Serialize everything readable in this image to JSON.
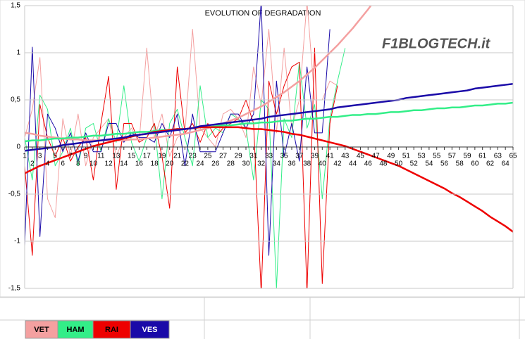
{
  "chart_data": {
    "type": "line",
    "title": "EVOLUTION OF DEGRADATION",
    "logo": "F1BLOGTECH.it",
    "categories": [
      1,
      2,
      3,
      4,
      5,
      6,
      7,
      8,
      9,
      10,
      11,
      12,
      13,
      14,
      15,
      16,
      17,
      18,
      19,
      20,
      21,
      22,
      23,
      24,
      25,
      26,
      27,
      28,
      29,
      30,
      31,
      32,
      33,
      34,
      35,
      36,
      37,
      38,
      39,
      40,
      41,
      42,
      43,
      44,
      45,
      46,
      47,
      48,
      49,
      50,
      51,
      52,
      53,
      54,
      55,
      56,
      57,
      58,
      59,
      60,
      61,
      62,
      63,
      64,
      65
    ],
    "ylim": [
      -1.5,
      1.5
    ],
    "yticks": [
      {
        "value": 1.5,
        "label": "1,5"
      },
      1,
      {
        "value": 0.5,
        "label": "0,5"
      },
      0,
      {
        "value": -0.5,
        "label": "-0,5"
      },
      -1,
      {
        "value": -1.5,
        "label": "-1,5"
      }
    ],
    "grid": true,
    "series": [
      {
        "name": "VET",
        "color": "#f4a0a0",
        "values": [
          0.1,
          0.4,
          0.95,
          -0.55,
          -0.75,
          0.3,
          -0.1,
          0.35,
          -0.2,
          0.1,
          0.2,
          0.3,
          -0.1,
          0.1,
          0.2,
          0.05,
          1.05,
          0.1,
          0.35,
          -0.1,
          0.1,
          0.15,
          1.25,
          0.2,
          0.1,
          0.0,
          0.35,
          0.4,
          0.3,
          0.1,
          0.85,
          0.45,
          1.25,
          0.15,
          1.05,
          0.2,
          0.5,
          1.55,
          0.5,
          0.5,
          0.7,
          0.65,
          null,
          null,
          null,
          null,
          null,
          null,
          null,
          null,
          null,
          null,
          null,
          null,
          null,
          null,
          null,
          null,
          null,
          null,
          null,
          null,
          null,
          null,
          null
        ],
        "trend": [
          0.15,
          0.14,
          0.12,
          0.11,
          0.1,
          0.09,
          0.08,
          0.08,
          0.07,
          0.07,
          0.07,
          0.07,
          0.07,
          0.07,
          0.08,
          0.08,
          0.09,
          0.1,
          0.11,
          0.12,
          0.13,
          0.14,
          0.16,
          0.18,
          0.2,
          0.22,
          0.25,
          0.28,
          0.31,
          0.35,
          0.39,
          0.43,
          0.48,
          0.53,
          0.58,
          0.64,
          0.7,
          0.77,
          0.84,
          0.92,
          1.0,
          1.08,
          1.17,
          1.26,
          1.36,
          1.46,
          1.57,
          1.68,
          null,
          null,
          null,
          null,
          null,
          null,
          null,
          null,
          null,
          null,
          null,
          null,
          null,
          null,
          null,
          null,
          null
        ]
      },
      {
        "name": "HAM",
        "color": "#33ee88",
        "values": [
          0.1,
          -0.35,
          0.55,
          0.4,
          -0.2,
          -0.05,
          0.2,
          -0.2,
          0.2,
          0.25,
          -0.05,
          0.3,
          0.05,
          0.65,
          0.05,
          -0.15,
          0.1,
          0.25,
          -0.55,
          0.25,
          0.4,
          0.1,
          -0.2,
          0.65,
          0.1,
          0.2,
          0.15,
          0.35,
          0.3,
          0.2,
          -0.35,
          0.5,
          0.4,
          -1.5,
          0.3,
          0.1,
          0.9,
          0.2,
          0.45,
          -0.55,
          0.3,
          0.7,
          1.05,
          null,
          null,
          null,
          null,
          null,
          null,
          null,
          null,
          null,
          null,
          null,
          null,
          null,
          null,
          null,
          null,
          null,
          null,
          null,
          null,
          null,
          null
        ],
        "trend": [
          0.06,
          0.07,
          0.07,
          0.08,
          0.09,
          0.09,
          0.1,
          0.1,
          0.11,
          0.12,
          0.12,
          0.13,
          0.14,
          0.14,
          0.15,
          0.16,
          0.16,
          0.17,
          0.18,
          0.18,
          0.19,
          0.19,
          0.2,
          0.21,
          0.21,
          0.22,
          0.23,
          0.23,
          0.24,
          0.25,
          0.25,
          0.26,
          0.26,
          0.27,
          0.28,
          0.28,
          0.29,
          0.3,
          0.3,
          0.31,
          0.32,
          0.32,
          0.33,
          0.34,
          0.34,
          0.35,
          0.35,
          0.36,
          0.37,
          0.37,
          0.38,
          0.39,
          0.39,
          0.4,
          0.41,
          0.41,
          0.42,
          0.42,
          0.43,
          0.44,
          0.44,
          0.45,
          0.46,
          0.46,
          0.47
        ]
      },
      {
        "name": "RAI",
        "color": "#ee0000",
        "values": [
          -0.2,
          -1.15,
          0.45,
          0.1,
          -0.1,
          0.1,
          -0.15,
          0.0,
          0.1,
          -0.35,
          0.25,
          0.75,
          -0.45,
          0.25,
          0.25,
          0.05,
          0.1,
          0.25,
          -0.1,
          -0.65,
          0.85,
          0.15,
          0.25,
          0.05,
          0.25,
          0.1,
          0.2,
          0.25,
          0.3,
          0.5,
          0.25,
          -1.55,
          0.7,
          0.35,
          0.65,
          0.85,
          0.9,
          -1.55,
          1.05,
          -1.45,
          0.25,
          0.65,
          null,
          null,
          null,
          null,
          null,
          null,
          null,
          null,
          null,
          null,
          null,
          null,
          null,
          null,
          null,
          null,
          null,
          null,
          null,
          null,
          null,
          null,
          null
        ],
        "trend": [
          -0.28,
          -0.24,
          -0.2,
          -0.17,
          -0.14,
          -0.11,
          -0.08,
          -0.05,
          -0.02,
          0.01,
          0.03,
          0.05,
          0.07,
          0.09,
          0.11,
          0.13,
          0.14,
          0.16,
          0.17,
          0.18,
          0.19,
          0.19,
          0.2,
          0.21,
          0.21,
          0.21,
          0.21,
          0.21,
          0.21,
          0.2,
          0.19,
          0.19,
          0.18,
          0.17,
          0.16,
          0.14,
          0.13,
          0.11,
          0.09,
          0.07,
          0.05,
          0.03,
          0.01,
          -0.02,
          -0.05,
          -0.08,
          -0.11,
          -0.14,
          -0.17,
          -0.2,
          -0.24,
          -0.28,
          -0.32,
          -0.36,
          -0.4,
          -0.44,
          -0.49,
          -0.53,
          -0.58,
          -0.63,
          -0.68,
          -0.74,
          -0.79,
          -0.84,
          -0.9
        ]
      },
      {
        "name": "VES",
        "color": "#1a0aa8",
        "values": [
          -1.05,
          1.06,
          -0.95,
          0.35,
          0.2,
          -0.05,
          0.15,
          -0.15,
          0.15,
          -0.05,
          -0.05,
          0.25,
          0.25,
          0.05,
          0.15,
          0.1,
          0.1,
          0.05,
          0.25,
          0.1,
          0.35,
          -0.2,
          0.35,
          -0.05,
          -0.05,
          -0.05,
          0.15,
          0.35,
          0.35,
          0.2,
          0.35,
          1.55,
          -1.15,
          0.7,
          -0.1,
          0.25,
          -0.15,
          0.85,
          0.15,
          0.15,
          1.25,
          null,
          null,
          null,
          null,
          null,
          null,
          null,
          null,
          null,
          null,
          null,
          null,
          null,
          null,
          null,
          null,
          null,
          null,
          null,
          null,
          null,
          null,
          null,
          null
        ],
        "trend": [
          -0.04,
          -0.03,
          -0.02,
          -0.01,
          0.0,
          0.02,
          0.03,
          0.04,
          0.05,
          0.06,
          0.07,
          0.08,
          0.09,
          0.1,
          0.12,
          0.13,
          0.14,
          0.15,
          0.16,
          0.17,
          0.18,
          0.19,
          0.2,
          0.22,
          0.23,
          0.24,
          0.25,
          0.26,
          0.27,
          0.28,
          0.29,
          0.3,
          0.32,
          0.33,
          0.34,
          0.35,
          0.36,
          0.37,
          0.38,
          0.39,
          0.4,
          0.42,
          0.43,
          0.44,
          0.45,
          0.46,
          0.47,
          0.48,
          0.49,
          0.5,
          0.52,
          0.53,
          0.54,
          0.55,
          0.56,
          0.57,
          0.58,
          0.59,
          0.6,
          0.62,
          0.63,
          0.64,
          0.65,
          0.66,
          0.67
        ]
      }
    ]
  }
}
